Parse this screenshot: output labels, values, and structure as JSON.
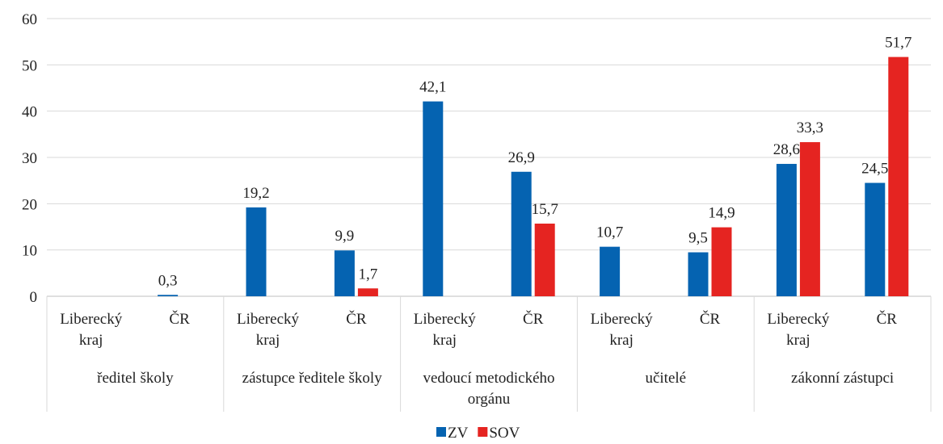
{
  "chart_data": {
    "type": "bar",
    "ylim": [
      0,
      60
    ],
    "yticks": [
      0,
      10,
      20,
      30,
      40,
      50,
      60
    ],
    "grid": true,
    "legend_position": "bottom",
    "groups": [
      {
        "label": "ředitel školy",
        "lines": [
          "ředitel školy"
        ]
      },
      {
        "label": "zástupce ředitele školy",
        "lines": [
          "zástupce ředitele školy"
        ]
      },
      {
        "label": "vedoucí metodického orgánu",
        "lines": [
          "vedoucí metodického",
          "orgánu"
        ]
      },
      {
        "label": "učitelé",
        "lines": [
          "učitelé"
        ]
      },
      {
        "label": "zákonní zástupci",
        "lines": [
          "zákonní zástupci"
        ]
      }
    ],
    "subcategories": [
      {
        "label": "Liberecký kraj",
        "lines": [
          "Liberecký",
          "kraj"
        ]
      },
      {
        "label": "ČR",
        "lines": [
          "ČR"
        ]
      }
    ],
    "series": [
      {
        "name": "ZV",
        "color": "#0563B1",
        "values": [
          null,
          0.3,
          19.2,
          9.9,
          42.1,
          26.9,
          10.7,
          9.5,
          28.6,
          24.5
        ],
        "labels": [
          "",
          "0,3",
          "19,2",
          "9,9",
          "42,1",
          "26,9",
          "10,7",
          "9,5",
          "28,6",
          "24,5"
        ]
      },
      {
        "name": "SOV",
        "color": "#E52421",
        "values": [
          null,
          null,
          null,
          1.7,
          null,
          15.7,
          null,
          14.9,
          33.3,
          51.7
        ],
        "labels": [
          "",
          "",
          "",
          "1,7",
          "",
          "15,7",
          "",
          "14,9",
          "33,3",
          "51,7"
        ]
      }
    ]
  }
}
